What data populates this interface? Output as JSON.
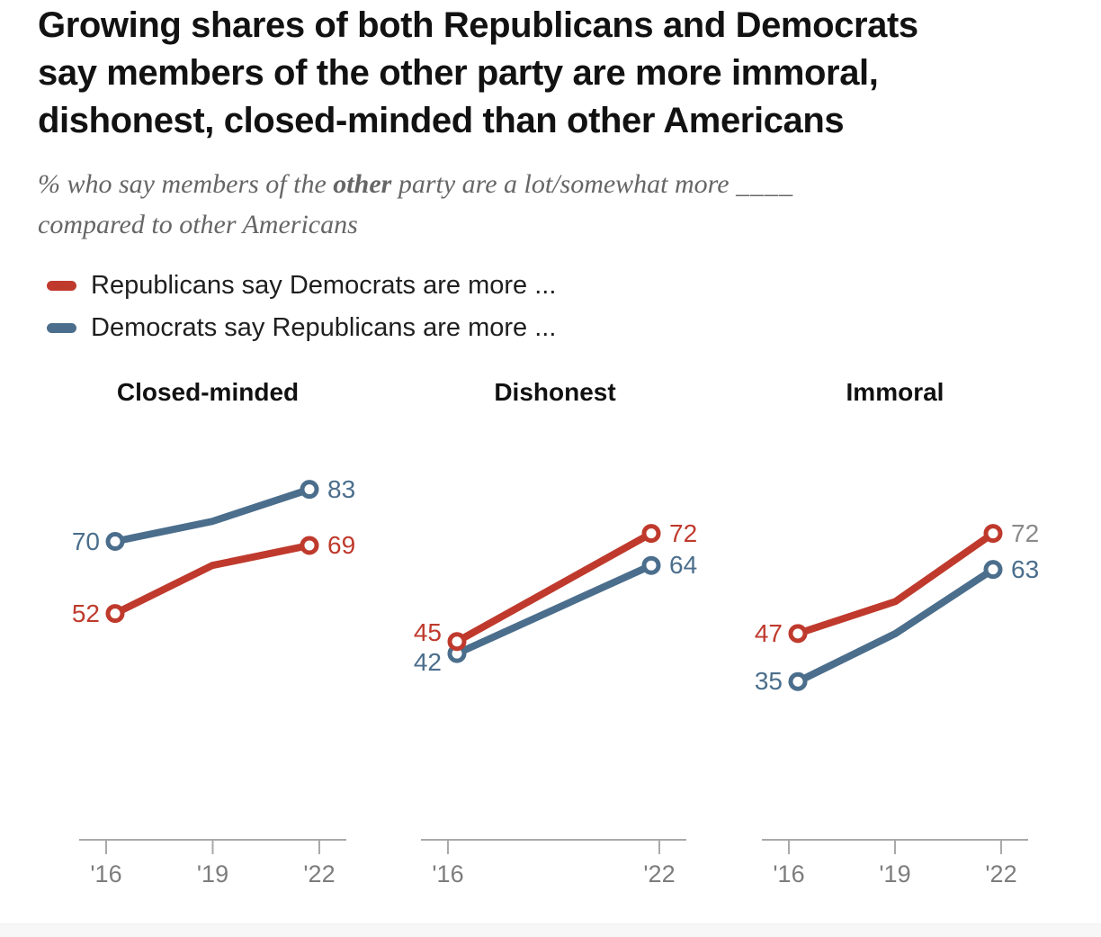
{
  "title": {
    "lines": [
      "Growing shares of both Republicans and Democrats",
      "say members of the other party are more immoral,",
      "dishonest, closed-minded than other Americans"
    ]
  },
  "subtitle": {
    "prefix": "% who say members of the ",
    "bold_word": "other",
    "middle": " party are a lot/somewhat more ",
    "blank": "____",
    "line2": "compared to other Americans"
  },
  "legend": {
    "items": [
      {
        "label": "Republicans say Democrats are more ...",
        "color": "#bf3a2d"
      },
      {
        "label": "Democrats say Republicans are more ...",
        "color": "#4b6e8c"
      }
    ]
  },
  "chart_data": {
    "type": "line",
    "x_axis_shared_tick_labels": [
      "'16",
      "'19",
      "'22"
    ],
    "axis_color": "#a9a9a9",
    "tick_label_color": "#7d7d7d",
    "y_axis_hidden": true,
    "panels": [
      {
        "title": "Closed-minded",
        "years": [
          2016,
          2019,
          2022
        ],
        "x_ticks": [
          "'16",
          "'19",
          "'22"
        ],
        "series": [
          {
            "name": "Republicans say Democrats are more ...",
            "color": "#bf3a2d",
            "values": [
              52,
              64,
              69
            ],
            "start_label": "52",
            "end_label": "69"
          },
          {
            "name": "Democrats say Republicans are more ...",
            "color": "#4b6e8c",
            "values": [
              70,
              75,
              83
            ],
            "start_label": "70",
            "end_label": "83"
          }
        ]
      },
      {
        "title": "Dishonest",
        "years": [
          2016,
          2022
        ],
        "x_ticks": [
          "'16",
          "'22"
        ],
        "series": [
          {
            "name": "Republicans say Democrats are more ...",
            "color": "#bf3a2d",
            "values": [
              45,
              72
            ],
            "start_label": "45",
            "end_label": "72"
          },
          {
            "name": "Democrats say Republicans are more ...",
            "color": "#4b6e8c",
            "values": [
              42,
              64
            ],
            "start_label": "42",
            "end_label": "64"
          }
        ]
      },
      {
        "title": "Immoral",
        "years": [
          2016,
          2019,
          2022
        ],
        "x_ticks": [
          "'16",
          "'19",
          "'22"
        ],
        "series": [
          {
            "name": "Republicans say Democrats are more ...",
            "color": "#bf3a2d",
            "values": [
              47,
              55,
              72
            ],
            "start_label": "47",
            "end_label": "72",
            "end_label_color": "#8a8a8a"
          },
          {
            "name": "Democrats say Republicans are more ...",
            "color": "#4b6e8c",
            "values": [
              35,
              47,
              63
            ],
            "start_label": "35",
            "end_label": "63"
          }
        ]
      }
    ]
  }
}
